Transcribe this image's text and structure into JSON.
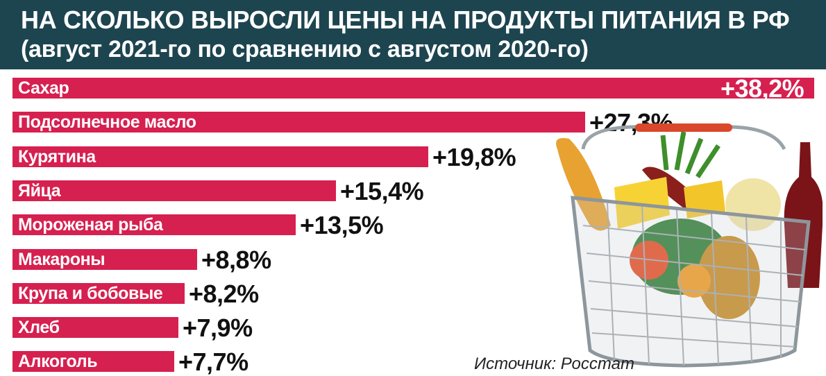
{
  "header": {
    "title": "НА СКОЛЬКО ВЫРОСЛИ ЦЕНЫ НА ПРОДУКТЫ ПИТАНИЯ В РФ",
    "subtitle": "(август 2021-го по сравнению с августом 2020-го)"
  },
  "chart_data": {
    "type": "bar",
    "orientation": "horizontal",
    "categories": [
      "Сахар",
      "Подсолнечное масло",
      "Курятина",
      "Яйца",
      "Мороженая рыба",
      "Макароны",
      "Крупа и бобовые",
      "Хлеб",
      "Алкоголь"
    ],
    "values": [
      38.2,
      27.3,
      19.8,
      15.4,
      13.5,
      8.8,
      8.2,
      7.9,
      7.7
    ],
    "labels": [
      "+38,2%",
      "+27,3%",
      "+19,8%",
      "+15,4%",
      "+13,5%",
      "+8,8%",
      "+8,2%",
      "+7,9%",
      "+7,7%"
    ],
    "bar_color": "#d6204f",
    "unit": "%"
  },
  "source": "Источник: Росстат",
  "colors": {
    "header_bg": "#1d4550",
    "bar": "#d6204f"
  }
}
